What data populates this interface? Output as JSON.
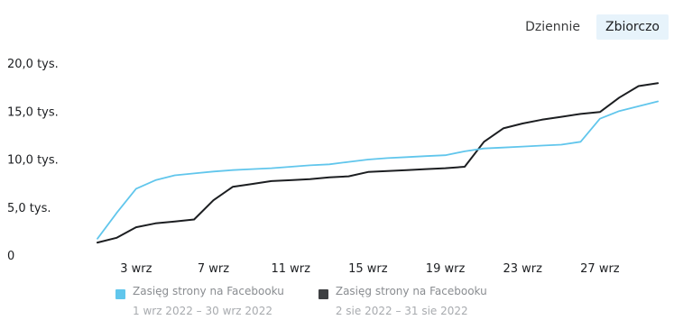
{
  "toggle": {
    "daily_label": "Dziennie",
    "cumulative_label": "Zbiorczo",
    "selected": "Zbiorczo"
  },
  "colors": {
    "current_series": "#61c6ec",
    "previous_series": "#1c1e21",
    "selected_toggle_bg": "#e7f3fb"
  },
  "chart_data": {
    "type": "line",
    "title": "",
    "xlabel": "",
    "ylabel": "",
    "x": [
      1,
      2,
      3,
      4,
      5,
      6,
      7,
      8,
      9,
      10,
      11,
      12,
      13,
      14,
      15,
      16,
      17,
      18,
      19,
      20,
      21,
      22,
      23,
      24,
      25,
      26,
      27,
      28,
      29,
      30
    ],
    "xticks": [
      {
        "value": 3,
        "label": "3 wrz"
      },
      {
        "value": 7,
        "label": "7 wrz"
      },
      {
        "value": 11,
        "label": "11 wrz"
      },
      {
        "value": 15,
        "label": "15 wrz"
      },
      {
        "value": 19,
        "label": "19 wrz"
      },
      {
        "value": 23,
        "label": "23 wrz"
      },
      {
        "value": 27,
        "label": "27 wrz"
      }
    ],
    "yticks": [
      {
        "value": 0,
        "label": "0"
      },
      {
        "value": 5000,
        "label": "5,0 tys."
      },
      {
        "value": 10000,
        "label": "10,0 tys."
      },
      {
        "value": 15000,
        "label": "15,0 tys."
      },
      {
        "value": 20000,
        "label": "20,0 tys."
      }
    ],
    "xlim": [
      1,
      30.6
    ],
    "ylim": [
      0,
      20000
    ],
    "grid": false,
    "legend_position": "bottom",
    "series": [
      {
        "name": "Zasięg strony na Facebooku",
        "range": "1 wrz 2022 – 30 wrz 2022",
        "color": "#61c6ec",
        "values": [
          1800,
          4500,
          7000,
          7900,
          8400,
          8600,
          8800,
          8950,
          9050,
          9150,
          9300,
          9450,
          9550,
          9800,
          10050,
          10200,
          10300,
          10400,
          10500,
          10900,
          11200,
          11300,
          11400,
          11500,
          11600,
          11900,
          14300,
          15100,
          15600,
          16100
        ]
      },
      {
        "name": "Zasięg strony na Facebooku",
        "range": "2 sie 2022 – 31 sie 2022",
        "color": "#1c1e21",
        "values": [
          1400,
          1900,
          3000,
          3400,
          3600,
          3800,
          5800,
          7200,
          7500,
          7800,
          7900,
          8000,
          8200,
          8300,
          8750,
          8850,
          8950,
          9050,
          9150,
          9300,
          11900,
          13300,
          13800,
          14200,
          14500,
          14800,
          15000,
          16500,
          17700,
          18000
        ]
      }
    ]
  }
}
